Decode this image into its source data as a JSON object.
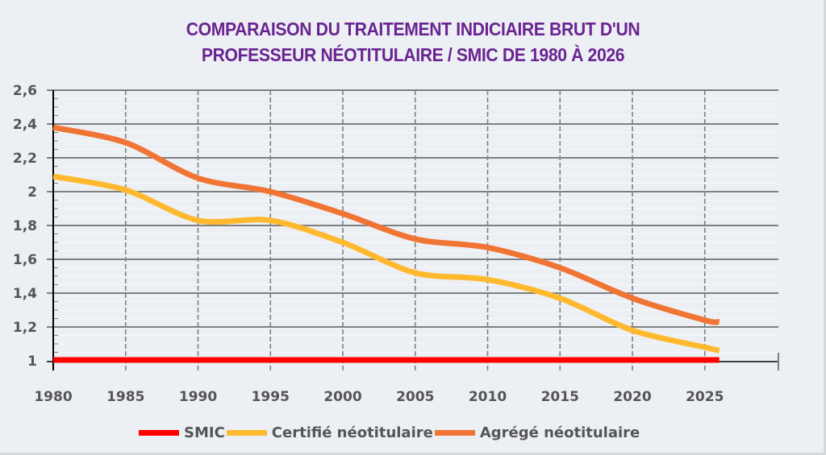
{
  "chart_data": {
    "type": "line",
    "title_lines": [
      "COMPARAISON DU TRAITEMENT INDICIAIRE BRUT D'UN",
      "PROFESSEUR NÉOTITULAIRE / SMIC DE 1980 À 2026"
    ],
    "xlabel": "",
    "ylabel": "",
    "x_ticks": [
      1980,
      1985,
      1990,
      1995,
      2000,
      2005,
      2010,
      2015,
      2020,
      2025
    ],
    "x_tick_labels": [
      "1980",
      "1985",
      "1990",
      "1995",
      "2000",
      "2005",
      "2010",
      "2015",
      "2020",
      "2025"
    ],
    "xlim": [
      1980,
      2030
    ],
    "y_ticks": [
      1,
      1.2,
      1.4,
      1.6,
      1.8,
      2,
      2.2,
      2.4,
      2.6
    ],
    "y_tick_labels": [
      "1",
      "1,2",
      "1,4",
      "1,6",
      "1,8",
      "2",
      "2,2",
      "2,4",
      "2,6"
    ],
    "ylim": [
      1,
      2.6
    ],
    "grid": true,
    "legend_position": "bottom",
    "x": [
      1980,
      1985,
      1990,
      1995,
      2000,
      2005,
      2010,
      2015,
      2020,
      2025,
      2026
    ],
    "series": [
      {
        "name": "SMIC",
        "color": "#ff0000",
        "values": [
          1,
          1,
          1,
          1,
          1,
          1,
          1,
          1,
          1,
          1,
          1
        ]
      },
      {
        "name": "Certifié néotitulaire",
        "color": "#ffb92e",
        "values": [
          2.09,
          2.01,
          1.83,
          1.83,
          1.7,
          1.52,
          1.48,
          1.37,
          1.18,
          1.08,
          1.06
        ]
      },
      {
        "name": "Agrégé néotitulaire",
        "color": "#f07534",
        "values": [
          2.38,
          2.29,
          2.08,
          2.0,
          1.87,
          1.72,
          1.67,
          1.55,
          1.37,
          1.24,
          1.23
        ]
      }
    ]
  },
  "colors": {
    "title": "#6a2491",
    "background": "#eceff4",
    "text": "#555555",
    "grid": "#7f7f7f"
  }
}
